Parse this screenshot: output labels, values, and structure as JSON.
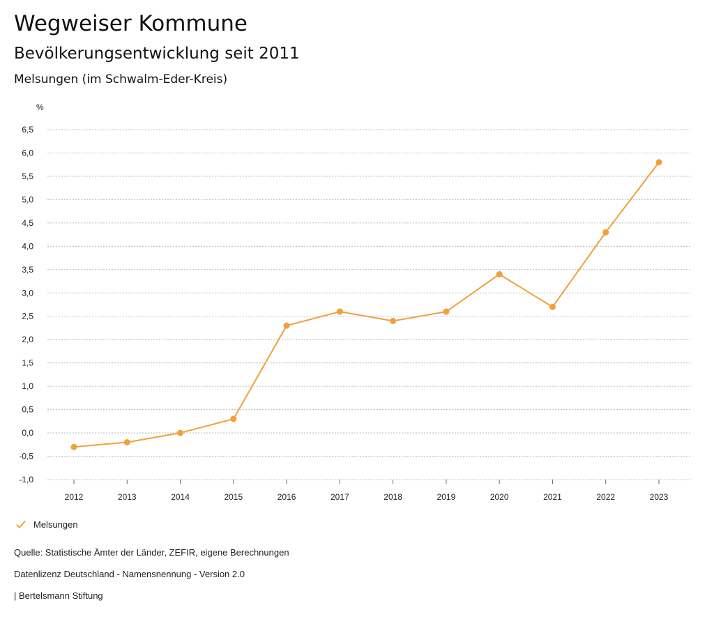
{
  "header": {
    "title": "Wegweiser Kommune",
    "subtitle": "Bevölkerungsentwicklung seit 2011",
    "region": "Melsungen (im Schwalm-Eder-Kreis)"
  },
  "chart_data": {
    "type": "line",
    "y_unit_label": "%",
    "x": [
      "2012",
      "2013",
      "2014",
      "2015",
      "2016",
      "2017",
      "2018",
      "2019",
      "2020",
      "2021",
      "2022",
      "2023"
    ],
    "series": [
      {
        "name": "Melsungen",
        "values": [
          -0.3,
          -0.2,
          0.0,
          0.3,
          2.3,
          2.6,
          2.4,
          2.6,
          3.4,
          2.7,
          4.3,
          5.8
        ],
        "color": "#f0a03c"
      }
    ],
    "ylim": [
      -1.0,
      6.5
    ],
    "yticks": [
      "-1,0",
      "-0,5",
      "0,0",
      "0,5",
      "1,0",
      "1,5",
      "2,0",
      "2,5",
      "3,0",
      "3,5",
      "4,0",
      "4,5",
      "5,0",
      "5,5",
      "6,0",
      "6,5"
    ],
    "ytick_values": [
      -1.0,
      -0.5,
      0.0,
      0.5,
      1.0,
      1.5,
      2.0,
      2.5,
      3.0,
      3.5,
      4.0,
      4.5,
      5.0,
      5.5,
      6.0,
      6.5
    ],
    "grid": true,
    "grid_style": "dotted",
    "legend_position": "bottom-left"
  },
  "legend": {
    "label": "Melsungen",
    "icon": "checkmark-icon"
  },
  "footer": {
    "source": "Quelle: Statistische Ämter der Länder, ZEFIR, eigene Berechnungen",
    "license": "Datenlizenz Deutschland - Namensnennung - Version 2.0",
    "credit": "| Bertelsmann Stiftung"
  },
  "colors": {
    "series": "#f0a03c",
    "grid": "#aaaaaa",
    "text": "#222222"
  }
}
